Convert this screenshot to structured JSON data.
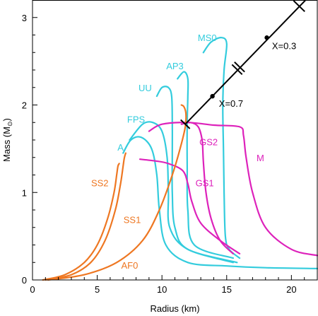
{
  "chart_data": {
    "type": "line",
    "title": "",
    "xlabel": "Radius (km)",
    "ylabel": "Mass (M",
    "ylabel_sub": "⊙",
    "ylabel_close": ")",
    "xlim": [
      0,
      22
    ],
    "ylim": [
      0,
      3.2
    ],
    "xticks": [
      0,
      5,
      10,
      15,
      20
    ],
    "xtick_labels": [
      "0",
      "5",
      "10",
      "15",
      "20"
    ],
    "yticks": [
      0,
      1,
      2,
      3
    ],
    "ytick_labels": [
      "0",
      "1",
      "2",
      "3"
    ],
    "minor_xticks": [
      1,
      2,
      3,
      4,
      6,
      7,
      8,
      9,
      11,
      12,
      13,
      14,
      16,
      17,
      18,
      19,
      21
    ],
    "minor_yticks": [
      0.2,
      0.4,
      0.6,
      0.8,
      1.2,
      1.4,
      1.6,
      1.8,
      2.2,
      2.4,
      2.6,
      2.8,
      3.2
    ],
    "grid": false,
    "legend": "none",
    "colors": {
      "cyan": "#33ccdd",
      "magenta": "#dd22bb",
      "orange": "#ee7722",
      "black": "#000000"
    },
    "series": [
      {
        "name": "MS0",
        "color": "#33ccdd",
        "x": [
          16.0,
          15.2,
          14.9,
          14.8,
          14.75,
          14.7,
          14.8,
          15.0,
          14.6,
          13.8,
          13.2
        ],
        "y": [
          0.25,
          0.35,
          0.5,
          1.0,
          1.5,
          2.0,
          2.4,
          2.7,
          2.77,
          2.72,
          2.6
        ],
        "label": "MS0",
        "label_xy": [
          13.5,
          2.77
        ],
        "label_anchor": "middle"
      },
      {
        "name": "AP3",
        "color": "#33ccdd",
        "x": [
          15.5,
          12.5,
          12.0,
          11.95,
          11.95,
          12.0,
          12.0,
          11.7,
          11.2
        ],
        "y": [
          0.25,
          0.4,
          0.8,
          1.3,
          1.8,
          2.1,
          2.3,
          2.38,
          2.3
        ],
        "label": "AP3",
        "label_xy": [
          11.0,
          2.45
        ],
        "label_anchor": "middle"
      },
      {
        "name": "UU",
        "color": "#33ccdd",
        "x": [
          15.8,
          12.0,
          11.0,
          10.8,
          10.8,
          10.8,
          10.75,
          10.5,
          10.0,
          9.6
        ],
        "y": [
          0.2,
          0.35,
          0.6,
          1.0,
          1.4,
          1.8,
          2.1,
          2.2,
          2.2,
          2.1
        ],
        "label": "UU",
        "label_xy": [
          8.7,
          2.2
        ],
        "label_anchor": "middle"
      },
      {
        "name": "FPS",
        "color": "#33ccdd",
        "x": [
          15.5,
          12.0,
          10.6,
          10.5,
          10.4,
          10.0,
          9.3,
          8.5,
          7.5
        ],
        "y": [
          0.2,
          0.35,
          0.6,
          1.0,
          1.4,
          1.7,
          1.8,
          1.78,
          1.6
        ],
        "label": "FPS",
        "label_xy": [
          8.0,
          1.84
        ],
        "label_anchor": "middle"
      },
      {
        "name": "A",
        "color": "#33ccdd",
        "x": [
          22.0,
          18.0,
          15.0,
          12.0,
          10.3,
          9.8,
          9.6,
          9.2,
          8.4,
          7.6,
          7.0
        ],
        "y": [
          0.13,
          0.14,
          0.16,
          0.2,
          0.4,
          0.8,
          1.2,
          1.5,
          1.63,
          1.6,
          1.45
        ],
        "label": "A",
        "label_xy": [
          6.8,
          1.52
        ],
        "label_anchor": "middle"
      },
      {
        "name": "M",
        "color": "#dd22bb",
        "x": [
          22.0,
          20.0,
          18.0,
          17.0,
          16.5,
          16.3,
          16.0,
          14.0,
          12.0,
          10.0,
          9.0
        ],
        "y": [
          0.28,
          0.35,
          0.6,
          1.0,
          1.4,
          1.65,
          1.75,
          1.77,
          1.8,
          1.78,
          1.7
        ],
        "label": "M",
        "label_xy": [
          17.6,
          1.4
        ],
        "label_anchor": "middle"
      },
      {
        "name": "GS2",
        "color": "#dd22bb",
        "x": [
          15.5,
          14.5,
          13.8,
          13.4,
          13.2,
          13.1,
          12.8,
          12.2,
          11.5
        ],
        "y": [
          0.3,
          0.45,
          0.7,
          1.0,
          1.35,
          1.6,
          1.75,
          1.8,
          1.78
        ],
        "label": "GS2",
        "label_xy": [
          13.6,
          1.58
        ],
        "label_anchor": "middle"
      },
      {
        "name": "GS1",
        "color": "#dd22bb",
        "x": [
          16.0,
          14.5,
          13.0,
          12.3,
          12.0,
          11.6,
          10.5,
          9.5,
          8.3
        ],
        "y": [
          0.3,
          0.45,
          0.65,
          0.9,
          1.1,
          1.25,
          1.33,
          1.36,
          1.38
        ],
        "label": "GS1",
        "label_xy": [
          13.3,
          1.11
        ],
        "label_anchor": "middle"
      },
      {
        "name": "SS2",
        "color": "#ee7722",
        "x": [
          0.8,
          2.5,
          4.0,
          5.0,
          5.8,
          6.3,
          6.5,
          6.6,
          6.7
        ],
        "y": [
          0.0,
          0.06,
          0.2,
          0.4,
          0.7,
          1.0,
          1.2,
          1.3,
          1.33
        ],
        "label": "SS2",
        "label_xy": [
          5.2,
          1.11
        ],
        "label_anchor": "middle"
      },
      {
        "name": "SS1",
        "color": "#ee7722",
        "x": [
          1.0,
          3.0,
          4.5,
          5.6,
          6.4,
          6.8,
          7.0,
          7.1,
          7.2
        ],
        "y": [
          0.0,
          0.06,
          0.2,
          0.45,
          0.8,
          1.1,
          1.3,
          1.4,
          1.45
        ],
        "label": "SS1",
        "label_xy": [
          7.7,
          0.69
        ],
        "label_anchor": "middle"
      },
      {
        "name": "AF0",
        "color": "#ee7722",
        "x": [
          1.2,
          4.0,
          6.5,
          8.5,
          9.8,
          10.8,
          11.4,
          11.8,
          11.85,
          11.7,
          11.5
        ],
        "y": [
          0.0,
          0.06,
          0.2,
          0.45,
          0.8,
          1.2,
          1.5,
          1.75,
          1.9,
          1.98,
          2.0
        ],
        "label": "AF0",
        "label_xy": [
          7.5,
          0.17
        ],
        "label_anchor": "middle"
      }
    ],
    "annotation_line": {
      "color": "#000000",
      "points": [
        [
          11.8,
          1.78
        ],
        [
          21.1,
          3.2
        ]
      ],
      "endcap_start": [
        11.8,
        1.78
      ],
      "endcap_end": [
        20.6,
        3.13
      ],
      "double_tick_at": [
        15.9,
        2.42
      ],
      "dots": [
        {
          "x": 13.9,
          "y": 2.1,
          "label": "X=0.7",
          "label_xy": [
            14.4,
            2.02
          ]
        },
        {
          "x": 18.1,
          "y": 2.77,
          "label": "X=0.3",
          "label_xy": [
            18.5,
            2.68
          ]
        }
      ]
    }
  }
}
